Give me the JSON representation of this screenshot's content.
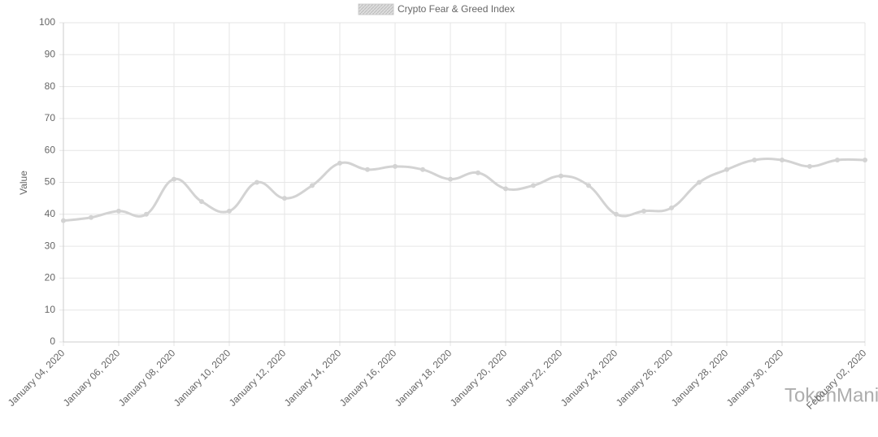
{
  "chart_data": {
    "type": "line",
    "legend": "Crypto Fear & Greed Index",
    "y_label": "Value",
    "watermark": "TokenMania",
    "categories": [
      "January 04, 2020",
      null,
      "January 06, 2020",
      null,
      "January 08, 2020",
      null,
      "January 10, 2020",
      null,
      "January 12, 2020",
      null,
      "January 14, 2020",
      null,
      "January 16, 2020",
      null,
      "January 18, 2020",
      null,
      "January 20, 2020",
      null,
      "January 22, 2020",
      null,
      "January 24, 2020",
      null,
      "January 26, 2020",
      null,
      "January 28, 2020",
      null,
      "January 30, 2020",
      null,
      null,
      "February 02, 2020"
    ],
    "values": [
      38,
      39,
      41,
      40,
      51,
      44,
      41,
      50,
      45,
      49,
      56,
      54,
      55,
      54,
      51,
      53,
      48,
      49,
      52,
      49,
      40,
      41,
      42,
      50,
      54,
      57,
      57,
      55,
      57,
      57
    ],
    "color": "#d3d3d3",
    "ylim": [
      0,
      100
    ],
    "yticks": [
      0,
      10,
      20,
      30,
      40,
      50,
      60,
      70,
      80,
      90,
      100
    ],
    "grid": true
  }
}
